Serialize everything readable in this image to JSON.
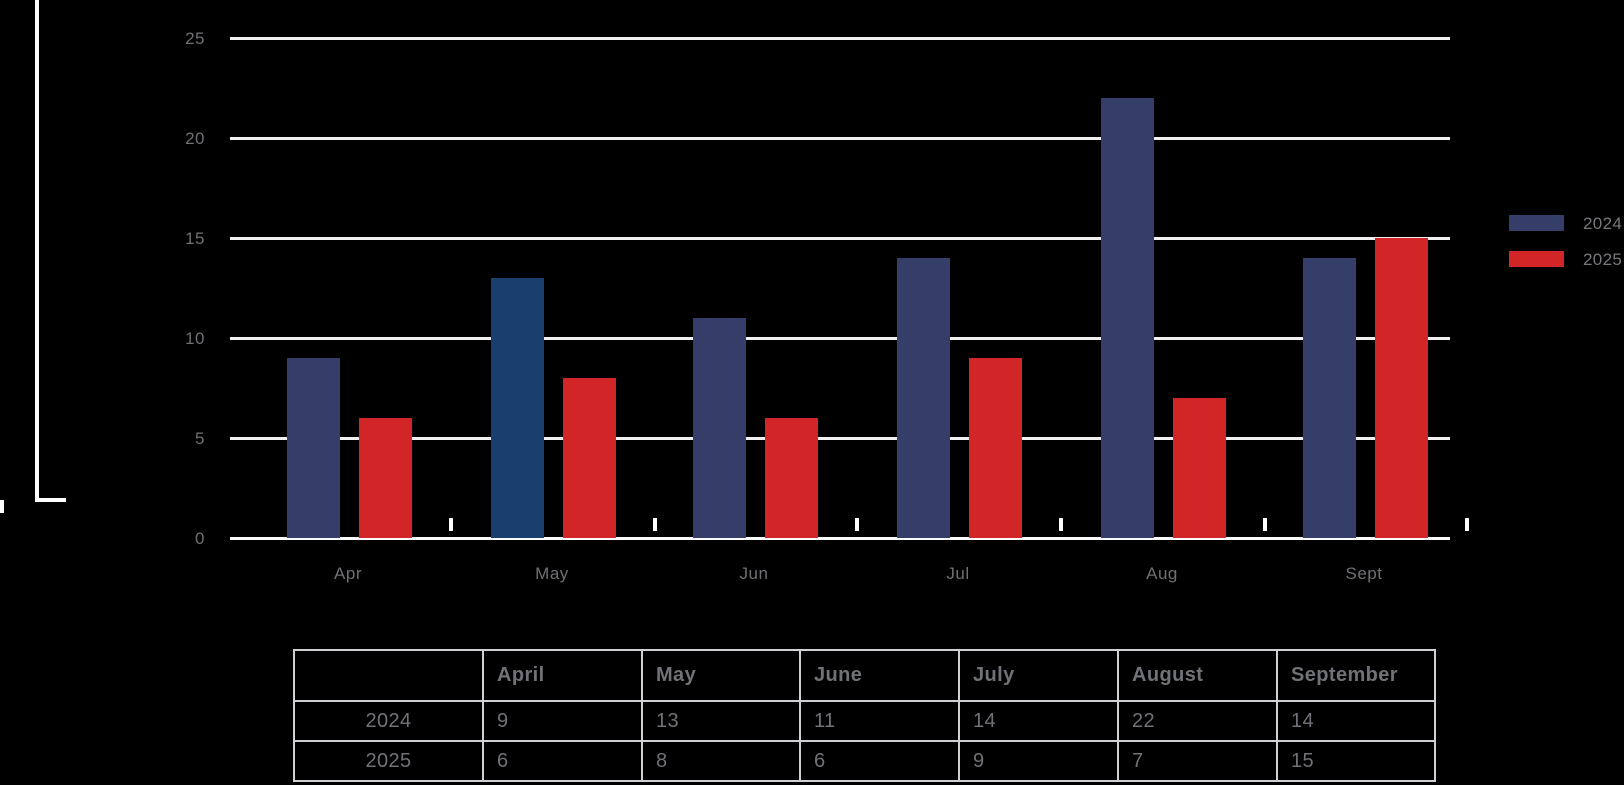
{
  "chart_data": {
    "type": "bar",
    "categories": [
      "Apr",
      "May",
      "Jun",
      "Jul",
      "Aug",
      "Sept"
    ],
    "series": [
      {
        "name": "2024",
        "values": [
          9,
          13,
          11,
          14,
          22,
          14
        ]
      },
      {
        "name": "2025",
        "values": [
          6,
          8,
          6,
          9,
          7,
          15
        ]
      }
    ],
    "highlight": {
      "series": "2024",
      "category": "May"
    },
    "y_ticks": [
      0,
      5,
      10,
      15,
      20,
      25
    ],
    "ylim": [
      0,
      25
    ],
    "grid": true,
    "title": "",
    "xlabel": "",
    "ylabel": "",
    "legend_position": "right"
  },
  "legend": {
    "items": [
      {
        "label": "2024",
        "color_key": "series_2024"
      },
      {
        "label": "2025",
        "color_key": "series_2025"
      }
    ]
  },
  "table": {
    "headers": [
      "",
      "April",
      "May",
      "June",
      "July",
      "August",
      "September"
    ],
    "rows": [
      {
        "label": "2024",
        "values": [
          "9",
          "13",
          "11",
          "14",
          "22",
          "14"
        ]
      },
      {
        "label": "2025",
        "values": [
          "6",
          "8",
          "6",
          "9",
          "7",
          "15"
        ]
      }
    ]
  },
  "colors": {
    "background": "#000000",
    "series_2024": "#343e68",
    "series_2024_highlight": "#1a3e6e",
    "series_2025": "#d12527",
    "gridline": "#f0f0f3",
    "baseline": "#fbfbfd",
    "axis_text": "#6f7074",
    "legend_text": "#77787c",
    "table_border": "#cfd0d4",
    "table_text": "#717277",
    "bracket": "#ffffff"
  }
}
